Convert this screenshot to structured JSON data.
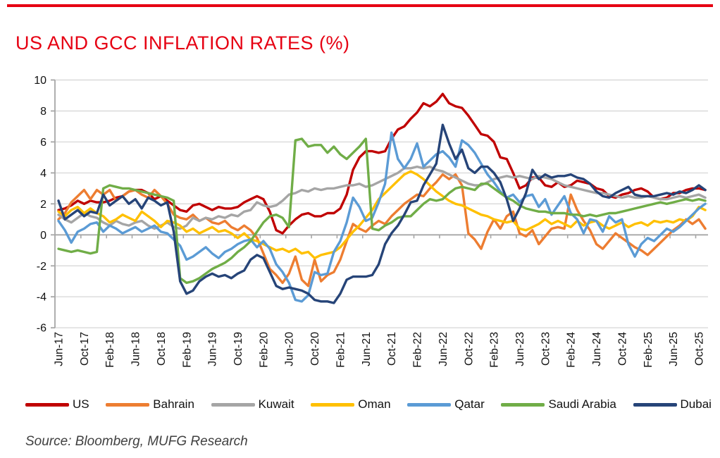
{
  "page": {
    "title": "US AND GCC INFLATION RATES (%)",
    "source": "Source: Bloomberg, MUFG Research",
    "accent_color": "#E60012"
  },
  "chart_data": {
    "type": "line",
    "title": "US AND GCC INFLATION RATES (%)",
    "xlabel": "",
    "ylabel": "",
    "ylim": [
      -6,
      10
    ],
    "ytick_step": 2,
    "grid": "horizontal-only",
    "gridline_color": "#D9D9D9",
    "axis_color": "#A6A6A6",
    "legend_position": "bottom",
    "x_tick_label_every": 4,
    "x_axis_crosses_at": 0,
    "months": [
      "Jun-17",
      "Jul-17",
      "Aug-17",
      "Sep-17",
      "Oct-17",
      "Nov-17",
      "Dec-17",
      "Jan-18",
      "Feb-18",
      "Mar-18",
      "Apr-18",
      "May-18",
      "Jun-18",
      "Jul-18",
      "Aug-18",
      "Sep-18",
      "Oct-18",
      "Nov-18",
      "Dec-18",
      "Jan-19",
      "Feb-19",
      "Mar-19",
      "Apr-19",
      "May-19",
      "Jun-19",
      "Jul-19",
      "Aug-19",
      "Sep-19",
      "Oct-19",
      "Nov-19",
      "Dec-19",
      "Jan-20",
      "Feb-20",
      "Mar-20",
      "Apr-20",
      "May-20",
      "Jun-20",
      "Jul-20",
      "Aug-20",
      "Sep-20",
      "Oct-20",
      "Nov-20",
      "Dec-20",
      "Jan-21",
      "Feb-21",
      "Mar-21",
      "Apr-21",
      "May-21",
      "Jun-21",
      "Jul-21",
      "Aug-21",
      "Sep-21",
      "Oct-21",
      "Nov-21",
      "Dec-21",
      "Jan-22",
      "Feb-22",
      "Mar-22",
      "Apr-22",
      "May-22",
      "Jun-22",
      "Jul-22",
      "Aug-22",
      "Sep-22",
      "Oct-22",
      "Nov-22",
      "Dec-22",
      "Jan-23",
      "Feb-23",
      "Mar-23",
      "Apr-23",
      "May-23",
      "Jun-23",
      "Jul-23",
      "Aug-23",
      "Sep-23",
      "Oct-23",
      "Nov-23",
      "Dec-23",
      "Jan-24",
      "Feb-24",
      "Mar-24",
      "Apr-24",
      "May-24",
      "Jun-24",
      "Jul-24",
      "Aug-24",
      "Sep-24",
      "Oct-24",
      "Nov-24",
      "Dec-24",
      "Jan-25",
      "Feb-25",
      "Mar-25",
      "Apr-25",
      "May-25",
      "Jun-25",
      "Jul-25",
      "Aug-25",
      "Sep-25",
      "Oct-25",
      "Nov-25"
    ],
    "series": [
      {
        "name": "US",
        "color": "#C00000",
        "values": [
          1.6,
          1.7,
          1.9,
          2.2,
          2.0,
          2.2,
          2.1,
          2.1,
          2.2,
          2.4,
          2.5,
          2.8,
          2.9,
          2.9,
          2.7,
          2.3,
          2.5,
          2.2,
          1.9,
          1.6,
          1.5,
          1.9,
          2.0,
          1.8,
          1.6,
          1.8,
          1.7,
          1.7,
          1.8,
          2.1,
          2.3,
          2.5,
          2.3,
          1.5,
          0.3,
          0.1,
          0.6,
          1.0,
          1.3,
          1.4,
          1.2,
          1.2,
          1.4,
          1.4,
          1.7,
          2.6,
          4.2,
          5.0,
          5.4,
          5.4,
          5.3,
          5.4,
          6.2,
          6.8,
          7.0,
          7.5,
          7.9,
          8.5,
          8.3,
          8.6,
          9.1,
          8.5,
          8.3,
          8.2,
          7.7,
          7.1,
          6.5,
          6.4,
          6.0,
          5.0,
          4.9,
          4.0,
          3.0,
          3.2,
          3.7,
          3.7,
          3.2,
          3.1,
          3.4,
          3.1,
          3.2,
          3.5,
          3.4,
          3.3,
          3.0,
          2.9,
          2.5,
          2.4,
          2.6,
          2.7,
          2.9,
          3.0,
          2.8,
          2.4,
          2.3,
          2.4,
          2.7,
          2.7,
          2.9,
          3.0,
          3.0,
          2.9
        ]
      },
      {
        "name": "Bahrain",
        "color": "#ED7D31",
        "values": [
          1.0,
          1.4,
          2.1,
          2.5,
          2.9,
          2.3,
          2.9,
          2.6,
          2.9,
          2.2,
          2.5,
          2.8,
          2.9,
          2.6,
          2.4,
          2.9,
          2.5,
          2.0,
          1.3,
          1.1,
          1.0,
          1.3,
          0.9,
          1.1,
          0.8,
          0.7,
          0.9,
          0.5,
          0.3,
          0.6,
          0.3,
          -0.2,
          -1.2,
          -2.2,
          -2.6,
          -3.1,
          -2.5,
          -1.4,
          -2.9,
          -3.3,
          -1.6,
          -3.0,
          -2.6,
          -2.4,
          -1.6,
          -0.4,
          0.7,
          0.4,
          0.2,
          0.6,
          0.9,
          0.7,
          1.2,
          1.6,
          2.0,
          2.3,
          2.6,
          2.5,
          3.0,
          3.4,
          3.9,
          3.6,
          3.9,
          3.2,
          0.1,
          -0.3,
          -0.9,
          0.2,
          1.0,
          0.4,
          1.2,
          1.5,
          0.1,
          -0.1,
          0.3,
          -0.6,
          -0.1,
          0.4,
          0.5,
          0.4,
          2.6,
          1.6,
          0.9,
          0.3,
          -0.6,
          -0.9,
          -0.4,
          0.1,
          -0.2,
          -0.5,
          -0.8,
          -1.0,
          -1.3,
          -0.9,
          -0.5,
          -0.1,
          0.3,
          0.6,
          1.0,
          0.7,
          1.0,
          0.4
        ]
      },
      {
        "name": "Kuwait",
        "color": "#A5A5A5",
        "values": [
          1.3,
          1.0,
          0.8,
          1.1,
          1.4,
          1.2,
          1.1,
          0.8,
          0.6,
          0.9,
          0.7,
          0.6,
          0.8,
          0.9,
          0.6,
          0.4,
          0.6,
          0.8,
          0.5,
          0.4,
          0.6,
          1.1,
          0.9,
          1.1,
          1.0,
          1.2,
          1.1,
          1.3,
          1.2,
          1.5,
          1.6,
          2.1,
          1.9,
          1.8,
          1.9,
          2.2,
          2.6,
          2.7,
          2.9,
          2.8,
          3.0,
          2.9,
          3.0,
          3.0,
          3.1,
          3.2,
          3.2,
          3.3,
          3.1,
          3.2,
          3.4,
          3.6,
          3.8,
          4.0,
          4.3,
          4.3,
          4.4,
          4.3,
          4.4,
          4.2,
          4.1,
          3.9,
          3.7,
          3.5,
          3.3,
          3.2,
          3.2,
          3.4,
          3.6,
          3.7,
          3.8,
          3.7,
          3.8,
          3.7,
          3.6,
          3.8,
          3.7,
          3.6,
          3.4,
          3.2,
          3.1,
          3.0,
          2.9,
          2.8,
          2.7,
          2.7,
          2.6,
          2.5,
          2.4,
          2.5,
          2.4,
          2.4,
          2.5,
          2.4,
          2.3,
          2.3,
          2.4,
          2.5,
          2.4,
          2.5,
          2.6,
          2.4
        ]
      },
      {
        "name": "Oman",
        "color": "#FFC000",
        "values": [
          1.5,
          1.2,
          1.6,
          1.8,
          1.4,
          1.7,
          1.4,
          1.2,
          0.8,
          1.0,
          1.3,
          1.1,
          0.9,
          1.5,
          1.2,
          0.9,
          0.5,
          0.9,
          0.8,
          0.6,
          0.2,
          0.4,
          0.1,
          0.3,
          0.5,
          0.2,
          0.3,
          0.1,
          -0.2,
          0.1,
          -0.3,
          -0.4,
          -0.6,
          -0.8,
          -1.0,
          -0.9,
          -1.1,
          -0.9,
          -1.2,
          -1.1,
          -1.5,
          -1.3,
          -1.2,
          -1.1,
          -0.8,
          -0.3,
          0.2,
          0.6,
          1.1,
          1.6,
          2.3,
          2.7,
          3.1,
          3.5,
          3.9,
          4.1,
          3.9,
          3.6,
          3.2,
          2.8,
          2.5,
          2.2,
          2.0,
          1.9,
          1.7,
          1.5,
          1.3,
          1.2,
          1.0,
          0.9,
          0.8,
          0.9,
          0.4,
          0.3,
          0.5,
          0.7,
          1.0,
          0.7,
          0.9,
          0.7,
          0.5,
          0.9,
          0.6,
          0.8,
          0.9,
          0.6,
          0.4,
          0.6,
          0.8,
          0.5,
          0.7,
          0.8,
          0.6,
          0.9,
          0.8,
          0.9,
          0.8,
          1.0,
          0.9,
          1.2,
          1.8,
          1.6
        ]
      },
      {
        "name": "Qatar",
        "color": "#5B9BD5",
        "values": [
          0.9,
          0.3,
          -0.5,
          0.2,
          0.4,
          0.7,
          0.8,
          0.2,
          0.6,
          0.4,
          0.1,
          0.3,
          0.5,
          0.2,
          0.4,
          0.6,
          0.2,
          0.1,
          -0.3,
          -0.7,
          -1.6,
          -1.4,
          -1.1,
          -0.8,
          -1.2,
          -1.5,
          -1.1,
          -0.9,
          -0.6,
          -0.4,
          -0.3,
          -0.8,
          -0.4,
          -0.9,
          -1.9,
          -2.4,
          -3.1,
          -4.2,
          -4.3,
          -3.9,
          -2.4,
          -2.6,
          -2.5,
          -1.1,
          -0.4,
          0.8,
          2.4,
          1.8,
          0.9,
          1.1,
          2.1,
          3.3,
          6.6,
          4.9,
          4.3,
          4.9,
          5.9,
          4.4,
          4.8,
          5.2,
          5.4,
          5.0,
          4.4,
          6.1,
          5.8,
          5.3,
          4.6,
          3.9,
          3.4,
          2.8,
          2.4,
          2.6,
          2.1,
          2.5,
          2.6,
          1.8,
          2.3,
          1.3,
          1.9,
          2.5,
          1.4,
          1.0,
          0.1,
          1.0,
          0.9,
          0.2,
          1.2,
          0.8,
          1.0,
          -0.6,
          -1.4,
          -0.6,
          -0.2,
          -0.4,
          0.0,
          0.4,
          0.2,
          0.5,
          0.9,
          1.3,
          1.7,
          2.0
        ]
      },
      {
        "name": "Saudi Arabia",
        "color": "#70AD47",
        "values": [
          -0.9,
          -1.0,
          -1.1,
          -1.0,
          -1.1,
          -1.2,
          -1.1,
          3.0,
          3.2,
          3.1,
          3.0,
          3.0,
          2.9,
          2.8,
          2.7,
          2.6,
          2.5,
          2.4,
          2.2,
          -2.8,
          -3.1,
          -3.0,
          -2.8,
          -2.5,
          -2.2,
          -2.0,
          -1.8,
          -1.5,
          -1.1,
          -0.8,
          -0.4,
          0.2,
          0.8,
          1.2,
          1.3,
          1.1,
          0.5,
          6.1,
          6.2,
          5.7,
          5.8,
          5.8,
          5.3,
          5.7,
          5.2,
          4.9,
          5.3,
          5.7,
          6.2,
          0.4,
          0.3,
          0.6,
          0.8,
          1.1,
          1.2,
          1.2,
          1.6,
          2.0,
          2.3,
          2.2,
          2.3,
          2.7,
          3.0,
          3.1,
          3.0,
          2.9,
          3.3,
          3.3,
          3.0,
          2.7,
          2.4,
          2.2,
          1.9,
          1.7,
          1.6,
          1.5,
          1.5,
          1.4,
          1.4,
          1.4,
          1.3,
          1.3,
          1.2,
          1.3,
          1.2,
          1.3,
          1.4,
          1.4,
          1.5,
          1.6,
          1.7,
          1.8,
          1.9,
          2.0,
          2.1,
          2.0,
          2.1,
          2.2,
          2.3,
          2.2,
          2.3,
          2.2
        ]
      },
      {
        "name": "Dubai",
        "color": "#264478",
        "values": [
          2.2,
          1.0,
          1.3,
          1.6,
          1.2,
          1.5,
          1.4,
          2.6,
          1.9,
          2.2,
          2.5,
          2.0,
          2.3,
          1.7,
          2.4,
          2.2,
          1.9,
          2.1,
          0.2,
          -3.0,
          -3.8,
          -3.6,
          -3.0,
          -2.7,
          -2.5,
          -2.7,
          -2.6,
          -2.8,
          -2.5,
          -2.3,
          -1.6,
          -1.3,
          -1.5,
          -2.4,
          -3.3,
          -3.5,
          -3.4,
          -3.5,
          -3.6,
          -3.8,
          -4.2,
          -4.3,
          -4.3,
          -4.4,
          -3.8,
          -2.9,
          -2.7,
          -2.7,
          -2.7,
          -2.6,
          -1.9,
          -0.6,
          0.1,
          0.6,
          1.3,
          2.1,
          2.2,
          3.2,
          3.9,
          4.6,
          7.1,
          5.9,
          4.9,
          5.5,
          4.3,
          4.0,
          4.4,
          4.4,
          4.0,
          3.4,
          2.3,
          0.9,
          1.7,
          2.7,
          4.2,
          3.6,
          3.9,
          3.7,
          3.8,
          3.8,
          3.9,
          3.7,
          3.6,
          3.3,
          2.8,
          2.5,
          2.4,
          2.7,
          2.9,
          3.1,
          2.6,
          2.5,
          2.5,
          2.5,
          2.6,
          2.7,
          2.6,
          2.8,
          2.7,
          2.9,
          3.2,
          2.9
        ]
      }
    ]
  }
}
